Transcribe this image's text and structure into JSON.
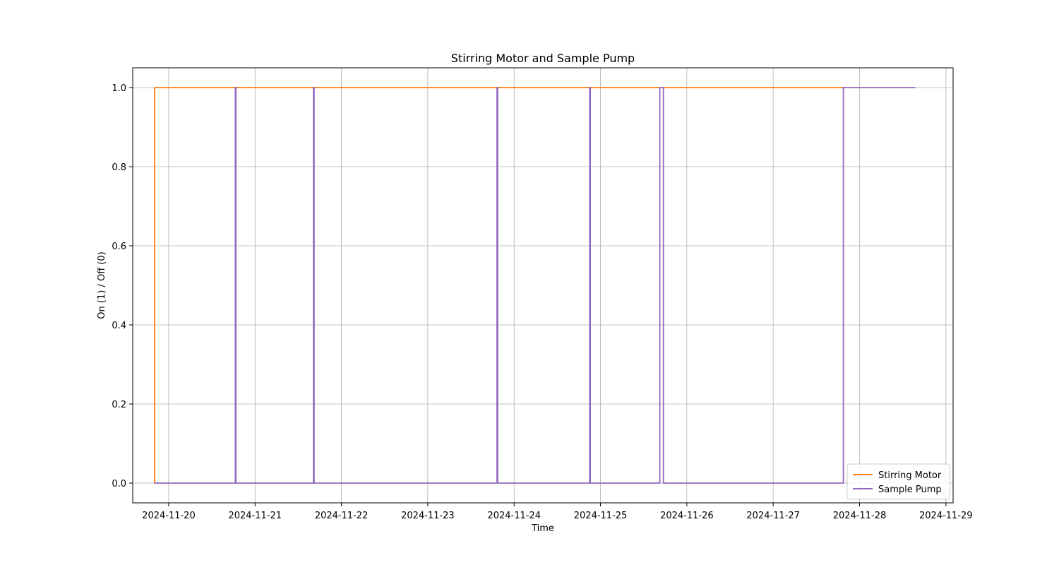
{
  "chart_data": {
    "type": "line",
    "title": "Stirring Motor and Sample Pump",
    "xlabel": "Time",
    "ylabel": "On (1) / Off (0)",
    "x_tick_labels": [
      "2024-11-20",
      "2024-11-21",
      "2024-11-22",
      "2024-11-23",
      "2024-11-24",
      "2024-11-25",
      "2024-11-26",
      "2024-11-27",
      "2024-11-28",
      "2024-11-29"
    ],
    "x_range": [
      "2024-11-19T14:00",
      "2024-11-29T02:00"
    ],
    "y_ticks": [
      0.0,
      0.2,
      0.4,
      0.6,
      0.8,
      1.0
    ],
    "y_tick_labels": [
      "0.0",
      "0.2",
      "0.4",
      "0.6",
      "0.8",
      "1.0"
    ],
    "ylim": [
      -0.05,
      1.05
    ],
    "grid": true,
    "legend_position": "lower-right",
    "series": [
      {
        "name": "Stirring Motor",
        "color": "#ff7f0e",
        "step": true,
        "points": [
          [
            "2024-11-19T20:00",
            0
          ],
          [
            "2024-11-19T20:05",
            1
          ],
          [
            "2024-11-27T20:00",
            1
          ]
        ]
      },
      {
        "name": "Sample Pump",
        "color": "#9467bd",
        "step": true,
        "points": [
          [
            "2024-11-19T20:00",
            0
          ],
          [
            "2024-11-20T18:30",
            1
          ],
          [
            "2024-11-20T18:40",
            0
          ],
          [
            "2024-11-21T16:15",
            1
          ],
          [
            "2024-11-21T16:25",
            0
          ],
          [
            "2024-11-23T19:15",
            1
          ],
          [
            "2024-11-23T19:25",
            0
          ],
          [
            "2024-11-24T21:00",
            1
          ],
          [
            "2024-11-24T21:10",
            0
          ],
          [
            "2024-11-25T16:30",
            1
          ],
          [
            "2024-11-25T17:30",
            0
          ],
          [
            "2024-11-27T19:30",
            1
          ],
          [
            "2024-11-28T15:30",
            1
          ]
        ]
      }
    ]
  }
}
